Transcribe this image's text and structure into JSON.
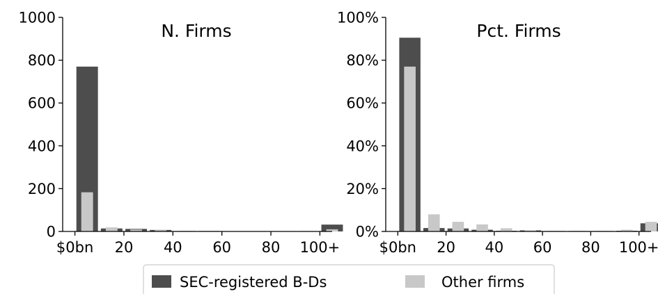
{
  "chart_data": [
    {
      "type": "bar",
      "title": "N. Firms",
      "xlabel": "",
      "ylabel": "",
      "x_tick_labels": [
        "$0bn",
        "20",
        "40",
        "60",
        "80",
        "100+"
      ],
      "x_tick_values": [
        0,
        20,
        40,
        60,
        80,
        100
      ],
      "xlim": [
        -5,
        105
      ],
      "y_tick_labels": [
        "0",
        "200",
        "400",
        "600",
        "800",
        "1000"
      ],
      "y_tick_values": [
        0,
        200,
        400,
        600,
        800,
        1000
      ],
      "ylim": [
        0,
        1000
      ],
      "bin_width": 10,
      "series": [
        {
          "name": "SEC-registered B-Ds",
          "color": "#4d4d4d",
          "x": [
            0,
            10,
            20,
            30,
            40,
            50,
            60,
            70,
            80,
            90,
            100
          ],
          "values": [
            770,
            14,
            12,
            7,
            2,
            2,
            1,
            1,
            1,
            1,
            32
          ]
        },
        {
          "name": "Other firms",
          "color": "#c8c8c8",
          "x": [
            0,
            10,
            20,
            30,
            40,
            50,
            60,
            70,
            80,
            90,
            100
          ],
          "values": [
            183,
            19,
            9,
            6,
            3,
            1,
            1,
            1,
            1,
            2,
            10
          ]
        }
      ],
      "grid": false
    },
    {
      "type": "bar",
      "title": "Pct. Firms",
      "xlabel": "",
      "ylabel": "",
      "x_tick_labels": [
        "$0bn",
        "20",
        "40",
        "60",
        "80",
        "100+"
      ],
      "x_tick_values": [
        0,
        20,
        40,
        60,
        80,
        100
      ],
      "xlim": [
        -5,
        105
      ],
      "y_tick_labels": [
        "0%",
        "20%",
        "40%",
        "60%",
        "80%",
        "100%"
      ],
      "y_tick_values": [
        0,
        20,
        40,
        60,
        80,
        100
      ],
      "ylim": [
        0,
        100
      ],
      "bin_width": 10,
      "series": [
        {
          "name": "SEC-registered B-Ds",
          "color": "#4d4d4d",
          "x": [
            0,
            10,
            20,
            30,
            40,
            50,
            60,
            70,
            80,
            90,
            100
          ],
          "values": [
            90.5,
            1.6,
            1.4,
            0.8,
            0.3,
            0.5,
            0.2,
            0.2,
            0.2,
            0.3,
            3.8
          ]
        },
        {
          "name": "Other firms",
          "color": "#c8c8c8",
          "x": [
            0,
            10,
            20,
            30,
            40,
            50,
            60,
            70,
            80,
            90,
            100
          ],
          "values": [
            77,
            8,
            4.5,
            3.3,
            1.5,
            0.5,
            0.3,
            0.3,
            0.3,
            0.8,
            4.5
          ]
        }
      ],
      "grid": false
    }
  ],
  "legend": {
    "placement": "bottom-center",
    "entries": [
      {
        "label": "SEC-registered B-Ds",
        "color": "#4d4d4d"
      },
      {
        "label": "Other firms",
        "color": "#c8c8c8"
      }
    ]
  }
}
